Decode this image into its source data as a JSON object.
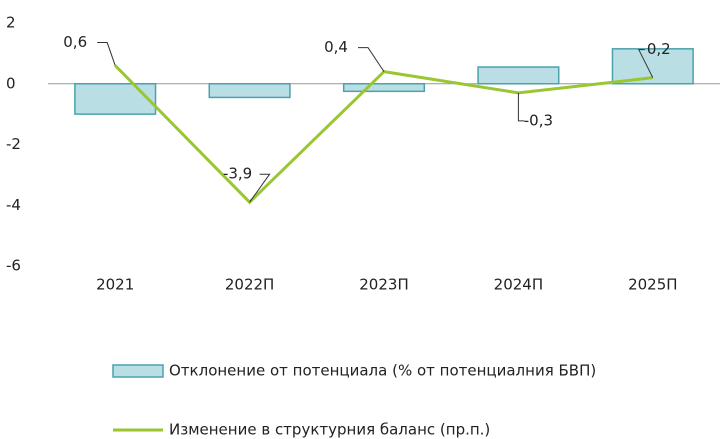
{
  "chart_data": {
    "type": "bar",
    "categories": [
      "2021",
      "2022П",
      "2023П",
      "2024П",
      "2025П"
    ],
    "series": [
      {
        "name": "Отклонение от потенциала (% от потенциалния БВП)",
        "type": "bar",
        "color": "#b9dfe4",
        "values": [
          -1.0,
          -0.45,
          -0.25,
          0.55,
          1.15
        ]
      },
      {
        "name": "Изменение в структурния баланс (пр.п.)",
        "type": "line",
        "color": "#9bc633",
        "values": [
          0.6,
          -3.9,
          0.4,
          -0.3,
          0.2
        ],
        "value_labels": [
          "0,6",
          "-3,9",
          "0,4",
          "-0,3",
          "0,2"
        ]
      }
    ],
    "ylim": [
      -6,
      2
    ],
    "yticks": [
      -6,
      -4,
      -2,
      0,
      2
    ]
  }
}
